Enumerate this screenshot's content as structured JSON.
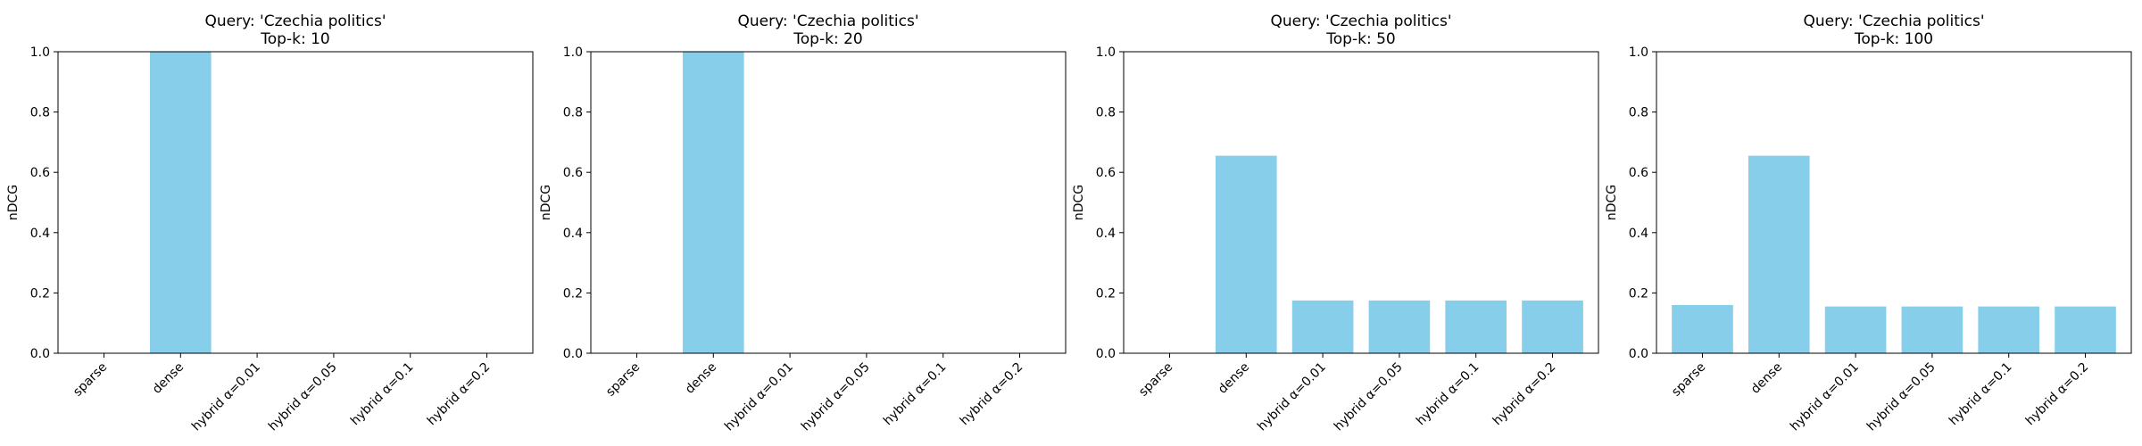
{
  "chart_data": [
    {
      "type": "bar",
      "title": "Query: 'Czechia politics'",
      "subtitle": "Top-k: 10",
      "xlabel": "",
      "ylabel": "nDCG",
      "ylim": [
        0,
        1.0
      ],
      "yticks": [
        "0.0",
        "0.2",
        "0.4",
        "0.6",
        "0.8",
        "1.0"
      ],
      "categories": [
        "sparse",
        "dense",
        "hybrid α=0.01",
        "hybrid α=0.05",
        "hybrid α=0.1",
        "hybrid α=0.2"
      ],
      "values": [
        0,
        1.0,
        0,
        0,
        0,
        0
      ],
      "bar_color": "#87CEEB",
      "grid": false
    },
    {
      "type": "bar",
      "title": "Query: 'Czechia politics'",
      "subtitle": "Top-k: 20",
      "xlabel": "",
      "ylabel": "nDCG",
      "ylim": [
        0,
        1.0
      ],
      "yticks": [
        "0.0",
        "0.2",
        "0.4",
        "0.6",
        "0.8",
        "1.0"
      ],
      "categories": [
        "sparse",
        "dense",
        "hybrid α=0.01",
        "hybrid α=0.05",
        "hybrid α=0.1",
        "hybrid α=0.2"
      ],
      "values": [
        0,
        1.0,
        0,
        0,
        0,
        0
      ],
      "bar_color": "#87CEEB",
      "grid": false
    },
    {
      "type": "bar",
      "title": "Query: 'Czechia politics'",
      "subtitle": "Top-k: 50",
      "xlabel": "",
      "ylabel": "nDCG",
      "ylim": [
        0,
        1.0
      ],
      "yticks": [
        "0.0",
        "0.2",
        "0.4",
        "0.6",
        "0.8",
        "1.0"
      ],
      "categories": [
        "sparse",
        "dense",
        "hybrid α=0.01",
        "hybrid α=0.05",
        "hybrid α=0.1",
        "hybrid α=0.2"
      ],
      "values": [
        0,
        0.655,
        0.175,
        0.175,
        0.175,
        0.175
      ],
      "bar_color": "#87CEEB",
      "grid": false
    },
    {
      "type": "bar",
      "title": "Query: 'Czechia politics'",
      "subtitle": "Top-k: 100",
      "xlabel": "",
      "ylabel": "nDCG",
      "ylim": [
        0,
        1.0
      ],
      "yticks": [
        "0.0",
        "0.2",
        "0.4",
        "0.6",
        "0.8",
        "1.0"
      ],
      "categories": [
        "sparse",
        "dense",
        "hybrid α=0.01",
        "hybrid α=0.05",
        "hybrid α=0.1",
        "hybrid α=0.2"
      ],
      "values": [
        0.16,
        0.655,
        0.155,
        0.155,
        0.155,
        0.155
      ],
      "bar_color": "#87CEEB",
      "grid": false
    }
  ]
}
